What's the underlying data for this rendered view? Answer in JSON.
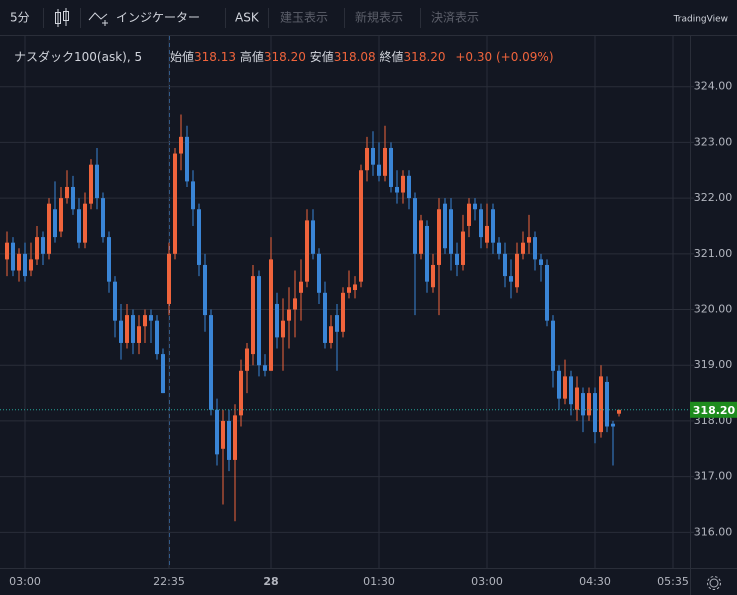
{
  "toolbar": {
    "interval": "5分",
    "indicators": "インジケーター",
    "ask": "ASK",
    "buttons": [
      "建玉表示",
      "新規表示",
      "決済表示"
    ],
    "brand": "TradingView"
  },
  "chart_data": {
    "type": "candlestick",
    "symbol": "ナスダック100(ask)",
    "interval": "5",
    "legend": {
      "labels": [
        "始値",
        "高値",
        "安値",
        "終値"
      ],
      "values": [
        "318.13",
        "318.20",
        "318.08",
        "318.20"
      ],
      "change": "+0.30 (+0.09%)"
    },
    "categories": [
      null,
      null,
      null,
      "03:00",
      null,
      null,
      null,
      null,
      null,
      null,
      null,
      null,
      null,
      null,
      null,
      null,
      null,
      null,
      null,
      null,
      null,
      null,
      null,
      null,
      null,
      null,
      null,
      "22:35",
      null,
      null,
      null,
      null,
      null,
      null,
      null,
      null,
      null,
      null,
      null,
      null,
      null,
      null,
      null,
      null,
      "28",
      null,
      null,
      null,
      null,
      null,
      null,
      null,
      null,
      null,
      null,
      null,
      null,
      null,
      null,
      null,
      null,
      null,
      "01:30",
      null,
      null,
      null,
      null,
      null,
      null,
      null,
      null,
      null,
      null,
      null,
      null,
      null,
      null,
      null,
      null,
      null,
      "03:00",
      null,
      null,
      null,
      null,
      null,
      null,
      null,
      null,
      null,
      null,
      null,
      null,
      null,
      null,
      null,
      null,
      null,
      "04:30",
      null,
      null,
      null,
      null,
      null,
      null,
      null,
      null,
      null,
      null,
      null,
      null,
      "05:35"
    ],
    "open": [
      320.9,
      321.2,
      320.7,
      321.0,
      320.7,
      320.9,
      321.3,
      321.0,
      321.8,
      321.4,
      322.0,
      322.2,
      321.8,
      321.2,
      321.9,
      322.6,
      322.0,
      321.3,
      320.5,
      319.8,
      319.4,
      319.9,
      319.4,
      319.7,
      319.9,
      319.8,
      319.2,
      320.1,
      321.0,
      322.8,
      323.1,
      322.3,
      321.8,
      320.8,
      319.9,
      318.2,
      317.5,
      318.0,
      317.3,
      318.1,
      318.9,
      319.2,
      320.6,
      319.0,
      318.9,
      320.1,
      319.5,
      319.8,
      320.0,
      320.3,
      320.5,
      321.6,
      321.0,
      320.3,
      319.4,
      319.9,
      319.6,
      320.3,
      320.35,
      320.5,
      322.5,
      322.9,
      322.6,
      322.4,
      322.9,
      322.2,
      322.1,
      322.4,
      322.0,
      321.0,
      321.5,
      320.4,
      320.8,
      321.9,
      321.8,
      321.0,
      320.8,
      321.5,
      321.9,
      321.8,
      321.2,
      321.8,
      321.2,
      321.0,
      320.6,
      320.4,
      321.0,
      321.2,
      321.3,
      320.9,
      320.8,
      319.8,
      318.9,
      318.4,
      318.8,
      318.2,
      318.5,
      318.1,
      318.5,
      317.8,
      318.7,
      317.95,
      318.13,
      null,
      null,
      null,
      null,
      null,
      null,
      null,
      null,
      null
    ],
    "high": [
      321.4,
      321.3,
      321.1,
      321.2,
      321.2,
      321.5,
      321.4,
      322.0,
      322.3,
      322.2,
      322.5,
      322.4,
      322.0,
      322.1,
      322.7,
      322.9,
      322.1,
      321.4,
      320.6,
      320.1,
      320.1,
      320.0,
      319.9,
      320.0,
      320.0,
      319.9,
      319.3,
      321.2,
      322.9,
      323.5,
      323.3,
      322.5,
      321.9,
      321.0,
      320.0,
      318.4,
      318.2,
      318.2,
      318.3,
      319.1,
      319.4,
      320.8,
      320.7,
      319.2,
      321.3,
      320.3,
      320.2,
      320.4,
      320.7,
      320.9,
      321.8,
      321.8,
      321.1,
      320.5,
      319.9,
      320.1,
      320.4,
      320.7,
      320.6,
      322.6,
      323.1,
      323.2,
      323.0,
      323.3,
      323.0,
      322.5,
      322.5,
      322.5,
      322.1,
      321.7,
      321.6,
      321.0,
      322.0,
      322.0,
      322.0,
      321.2,
      321.7,
      322.0,
      322.0,
      321.9,
      321.9,
      321.9,
      321.3,
      321.2,
      320.9,
      321.2,
      321.4,
      321.7,
      321.4,
      321.0,
      320.9,
      319.9,
      319.0,
      319.1,
      318.9,
      318.8,
      318.6,
      318.6,
      318.6,
      319.0,
      318.8,
      318.0,
      318.2,
      null,
      null,
      null,
      null,
      null,
      null,
      null,
      null,
      null
    ],
    "low": [
      320.6,
      320.6,
      320.5,
      320.5,
      320.6,
      320.8,
      320.8,
      320.9,
      321.2,
      321.3,
      321.9,
      321.7,
      321.1,
      321.1,
      321.8,
      321.8,
      321.2,
      320.3,
      319.5,
      319.1,
      319.3,
      319.2,
      319.2,
      319.4,
      319.4,
      319.1,
      318.5,
      319.9,
      320.9,
      322.5,
      322.2,
      321.5,
      320.6,
      319.6,
      318.1,
      317.2,
      316.5,
      317.1,
      316.2,
      317.9,
      318.5,
      319.0,
      318.8,
      318.8,
      318.9,
      319.3,
      318.9,
      319.3,
      319.5,
      319.8,
      320.4,
      320.9,
      320.1,
      319.3,
      319.3,
      318.9,
      319.5,
      320.2,
      320.2,
      320.4,
      322.3,
      322.4,
      322.3,
      322.3,
      322.1,
      321.9,
      321.9,
      321.8,
      319.9,
      320.9,
      320.3,
      320.3,
      319.9,
      321.0,
      320.7,
      320.6,
      320.7,
      321.3,
      321.6,
      321.1,
      321.1,
      321.0,
      320.9,
      320.4,
      320.2,
      320.3,
      320.9,
      321.0,
      320.7,
      320.5,
      319.7,
      318.6,
      318.2,
      318.3,
      318.1,
      318.0,
      317.8,
      318.0,
      317.6,
      317.7,
      317.8,
      317.2,
      318.08,
      null,
      null,
      null,
      null,
      null,
      null,
      null,
      null,
      null
    ],
    "close": [
      321.2,
      320.7,
      321.0,
      320.6,
      320.9,
      321.3,
      321.0,
      321.9,
      321.3,
      322.0,
      322.2,
      321.8,
      321.2,
      321.9,
      322.6,
      322.0,
      321.3,
      320.5,
      319.8,
      319.4,
      319.9,
      319.4,
      319.7,
      319.9,
      319.8,
      319.2,
      318.5,
      321.0,
      322.8,
      323.1,
      322.3,
      321.8,
      320.8,
      319.9,
      318.2,
      317.4,
      318.0,
      317.3,
      318.1,
      318.9,
      319.3,
      320.6,
      319.0,
      318.9,
      320.9,
      319.5,
      319.8,
      320.0,
      320.2,
      320.5,
      321.6,
      321.0,
      320.3,
      319.4,
      319.7,
      319.6,
      320.3,
      320.4,
      320.45,
      322.5,
      322.9,
      322.6,
      322.4,
      322.9,
      322.2,
      322.1,
      322.4,
      322.0,
      321.0,
      321.6,
      320.5,
      320.8,
      321.8,
      321.1,
      321.0,
      320.8,
      321.4,
      321.9,
      321.8,
      321.3,
      321.5,
      321.2,
      321.0,
      320.6,
      320.5,
      321.0,
      321.2,
      321.3,
      320.9,
      320.8,
      319.8,
      318.9,
      318.4,
      318.8,
      318.3,
      318.6,
      318.1,
      318.5,
      317.8,
      318.8,
      317.9,
      317.9,
      318.2,
      null,
      null,
      null,
      null,
      null,
      null,
      null,
      null,
      null
    ],
    "up_color": "#f0643c",
    "down_color": "#3a85d6",
    "ylim": [
      315.36,
      324.91
    ],
    "yticks": [
      {
        "value": 316,
        "label": "316.00"
      },
      {
        "value": 317,
        "label": "317.00"
      },
      {
        "value": 318,
        "label": "318.00"
      },
      {
        "value": 319,
        "label": "319.00"
      },
      {
        "value": 320,
        "label": "320.00"
      },
      {
        "value": 321,
        "label": "321.00"
      },
      {
        "value": 322,
        "label": "322.00"
      },
      {
        "value": 323,
        "label": "323.00"
      },
      {
        "value": 324,
        "label": "324.00"
      }
    ],
    "last_price": {
      "value": 318.2,
      "label": "318.20"
    },
    "grid": true
  }
}
